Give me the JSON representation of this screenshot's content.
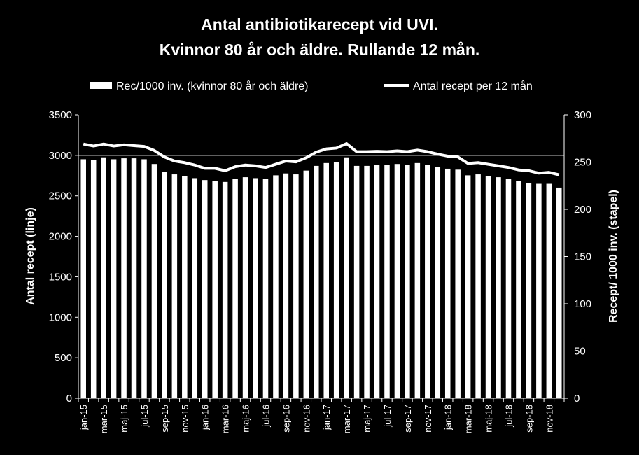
{
  "chart_data": {
    "type": "bar+line",
    "title_line1": "Antal antibiotikarecept vid UVI.",
    "title_line2": "Kvinnor 80 år och äldre. Rullande 12 mån.",
    "ylabel_left": "Antal recept (linje)",
    "ylabel_right": "Recept/ 1000 inv. (stapel)",
    "ylim_left": [
      0,
      3500
    ],
    "ylim_right": [
      0,
      300
    ],
    "yticks_left": [
      "0",
      "500",
      "1000",
      "1500",
      "2000",
      "2500",
      "3000",
      "3500"
    ],
    "yticks_right": [
      "0",
      "50",
      "100",
      "150",
      "200",
      "250",
      "300"
    ],
    "legend": {
      "bar": "Rec/1000 inv. (kvinnor 80 år och äldre)",
      "line": "Antal recept per 12 mån"
    },
    "categories": [
      "jan-15",
      "feb-15",
      "mar-15",
      "apr-15",
      "maj-15",
      "jun-15",
      "jul-15",
      "aug-15",
      "sep-15",
      "okt-15",
      "nov-15",
      "dec-15",
      "jan-16",
      "feb-16",
      "mar-16",
      "apr-16",
      "maj-16",
      "jun-16",
      "jul-16",
      "aug-16",
      "sep-16",
      "okt-16",
      "nov-16",
      "dec-16",
      "jan-17",
      "feb-17",
      "mar-17",
      "apr-17",
      "maj-17",
      "jun-17",
      "jul-17",
      "aug-17",
      "sep-17",
      "okt-17",
      "nov-17",
      "dec-17",
      "jan-18",
      "feb-18",
      "mar-18",
      "apr-18",
      "maj-18",
      "jun-18",
      "jul-18",
      "aug-18",
      "sep-18",
      "okt-18",
      "nov-18",
      "dec-18"
    ],
    "xtick_labels": [
      "jan-15",
      "mar-15",
      "maj-15",
      "jul-15",
      "sep-15",
      "nov-15",
      "jan-16",
      "mar-16",
      "maj-16",
      "jul-16",
      "sep-16",
      "nov-16",
      "jan-17",
      "mar-17",
      "maj-17",
      "jul-17",
      "sep-17",
      "nov-17",
      "jan-18",
      "mar-18",
      "maj-18",
      "jul-18",
      "sep-18",
      "nov-18"
    ],
    "series": [
      {
        "name": "Rec/1000 inv. (kvinnor 80 år och äldre)",
        "axis": "right",
        "kind": "bar",
        "values": [
          253,
          252,
          255,
          253,
          254,
          254,
          253,
          248,
          240,
          237,
          235,
          233,
          231,
          230,
          229,
          232,
          234,
          233,
          232,
          236,
          238,
          237,
          241,
          246,
          249,
          250,
          255,
          246,
          246,
          247,
          247,
          248,
          247,
          249,
          247,
          245,
          243,
          242,
          236,
          237,
          235,
          234,
          232,
          230,
          228,
          227,
          227,
          223
        ]
      },
      {
        "name": "Antal recept per 12 mån",
        "axis": "left",
        "kind": "line",
        "values": [
          3140,
          3115,
          3140,
          3115,
          3130,
          3120,
          3110,
          3060,
          2980,
          2930,
          2910,
          2880,
          2840,
          2840,
          2810,
          2860,
          2880,
          2870,
          2850,
          2890,
          2930,
          2920,
          2970,
          3040,
          3080,
          3090,
          3145,
          3045,
          3045,
          3050,
          3045,
          3055,
          3045,
          3065,
          3045,
          3015,
          2990,
          2980,
          2900,
          2910,
          2890,
          2870,
          2850,
          2820,
          2810,
          2780,
          2790,
          2760
        ]
      }
    ]
  }
}
